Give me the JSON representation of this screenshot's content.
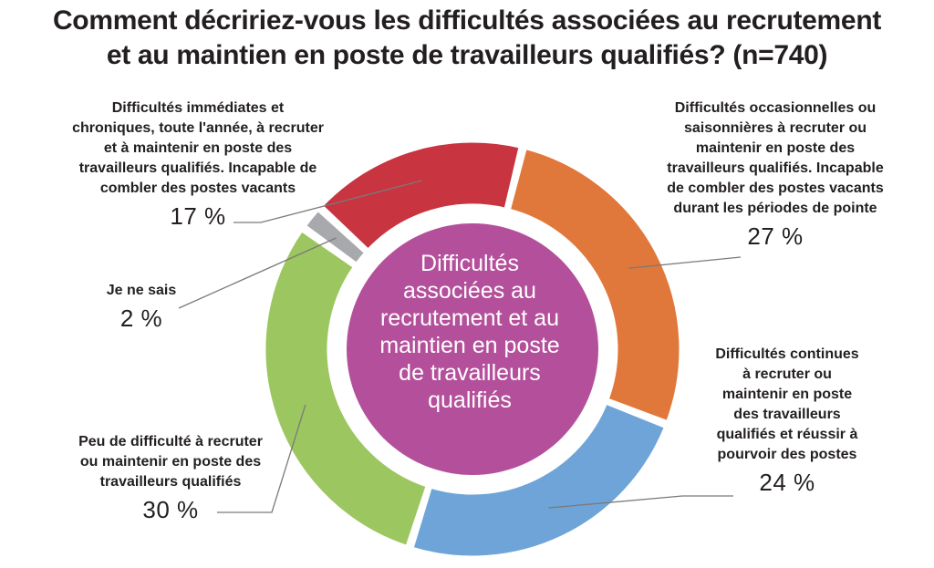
{
  "title_line1": "Comment décririez-vous les difficultés associées au recrutement",
  "title_line2": "et au maintien en poste de travailleurs qualifiés? (n=740)",
  "chart_data": {
    "type": "pie",
    "center_label": "Difficultés associées au recrutement et au maintien en poste de travailleurs qualifiés",
    "slices": [
      {
        "label": "Difficultés occasionnelles ou saisonnières à recruter ou maintenir en poste des travailleurs qualifiés. Incapable de combler des postes vacants durant les périodes de pointe",
        "value": 27,
        "display": "27 %",
        "color": "#e0783b"
      },
      {
        "label": "Difficultés continues à recruter ou maintenir en poste des travailleurs qualifiés et réussir à pourvoir des postes",
        "value": 24,
        "display": "24 %",
        "color": "#6fa4d8"
      },
      {
        "label": "Peu de difficulté à recruter ou maintenir en poste des travailleurs qualifiés",
        "value": 30,
        "display": "30 %",
        "color": "#9cc65f"
      },
      {
        "label": "Je ne sais",
        "value": 2,
        "display": "2 %",
        "color": "#a7a9ac"
      },
      {
        "label": "Difficultés immédiates et chroniques, toute l'année, à recruter et à maintenir en poste des travailleurs qualifiés. Incapable de combler des postes vacants",
        "value": 17,
        "display": "17 %",
        "color": "#c8343f"
      }
    ],
    "center_color": "#b4509b"
  },
  "labels": {
    "occasional": {
      "lines": [
        "Difficultés occasionnelles ou",
        "saisonnières à recruter ou",
        "maintenir en poste des",
        "travailleurs qualifiés. Incapable",
        "de combler des postes vacants",
        "durant les périodes de pointe"
      ]
    },
    "continuous": {
      "lines": [
        "Difficultés continues",
        "à recruter ou",
        "maintenir en poste",
        "des travailleurs",
        "qualifiés et réussir à",
        "pourvoir des postes"
      ]
    },
    "few": {
      "lines": [
        "Peu de difficulté à recruter",
        "ou maintenir en poste des",
        "travailleurs qualifiés"
      ]
    },
    "dontknow": {
      "lines": [
        "Je ne sais"
      ]
    },
    "immediate": {
      "lines": [
        "Difficultés immédiates et",
        "chroniques, toute l'année, à recruter",
        "et à maintenir en poste des",
        "travailleurs qualifiés. Incapable de",
        "combler des postes vacants"
      ]
    },
    "center_lines": [
      "Difficultés",
      "associées au",
      "recrutement et au",
      "maintien en poste",
      "de travailleurs",
      "qualifiés"
    ]
  }
}
